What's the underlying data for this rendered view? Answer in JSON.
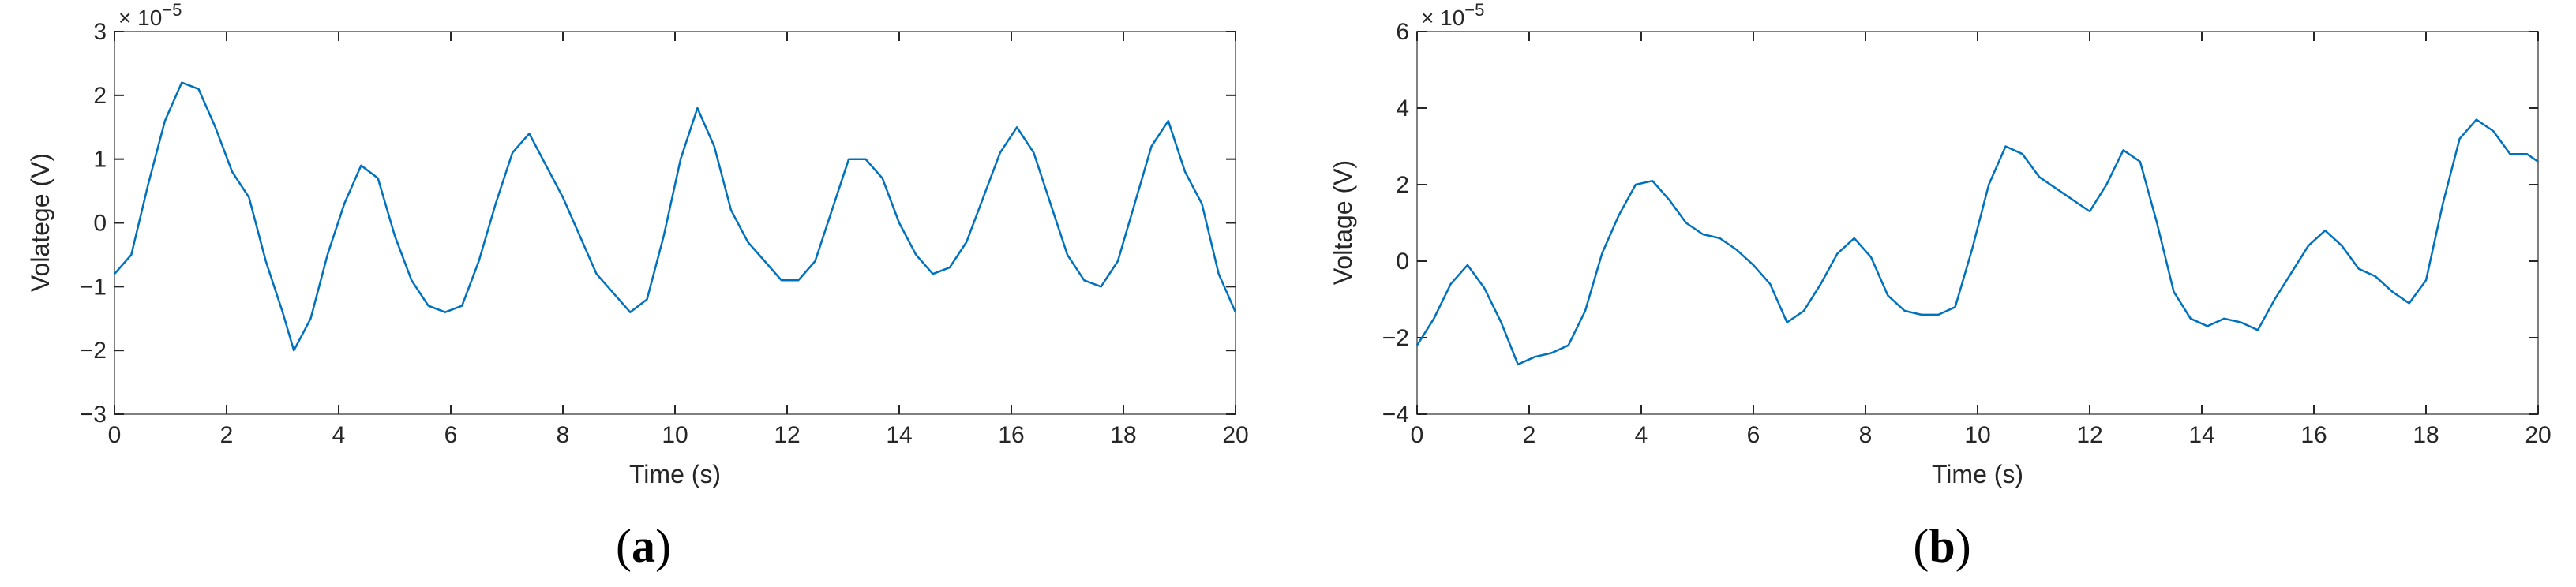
{
  "colors": {
    "series": "#0072BD",
    "axis": "#262626",
    "box": "#808080"
  },
  "chart_data": [
    {
      "type": "line",
      "panel_label_prefix": "(",
      "panel_label_letter": "a",
      "panel_label_suffix": ")",
      "xlabel": "Time (s)",
      "ylabel": "Volatege (V)",
      "exponent_base": "× 10",
      "exponent_power": "−5",
      "xlim": [
        0,
        20
      ],
      "ylim": [
        -3,
        3
      ],
      "xticks": [
        0,
        2,
        4,
        6,
        8,
        10,
        12,
        14,
        16,
        18,
        20
      ],
      "yticks": [
        -3,
        -2,
        -1,
        0,
        1,
        2,
        3
      ],
      "series": [
        {
          "x": [
            0,
            0.3,
            0.6,
            0.9,
            1.2,
            1.5,
            1.8,
            2.1,
            2.4,
            2.7,
            3.0,
            3.2,
            3.5,
            3.8,
            4.1,
            4.4,
            4.7,
            5.0,
            5.3,
            5.6,
            5.9,
            6.2,
            6.5,
            6.8,
            7.1,
            7.4,
            7.7,
            8.0,
            8.3,
            8.6,
            8.9,
            9.2,
            9.5,
            9.8,
            10.1,
            10.4,
            10.7,
            11.0,
            11.3,
            11.6,
            11.9,
            12.2,
            12.5,
            12.8,
            13.1,
            13.4,
            13.7,
            14.0,
            14.3,
            14.6,
            14.9,
            15.2,
            15.5,
            15.8,
            16.1,
            16.4,
            16.7,
            17.0,
            17.3,
            17.6,
            17.9,
            18.2,
            18.5,
            18.8,
            19.1,
            19.4,
            19.7,
            20.0
          ],
          "y": [
            -0.8,
            -0.5,
            0.6,
            1.6,
            2.2,
            2.1,
            1.5,
            0.8,
            0.4,
            -0.6,
            -1.4,
            -2.0,
            -1.5,
            -0.5,
            0.3,
            0.9,
            0.7,
            -0.2,
            -0.9,
            -1.3,
            -1.4,
            -1.3,
            -0.6,
            0.3,
            1.1,
            1.4,
            0.9,
            0.4,
            -0.2,
            -0.8,
            -1.1,
            -1.4,
            -1.2,
            -0.2,
            1.0,
            1.8,
            1.2,
            0.2,
            -0.3,
            -0.6,
            -0.9,
            -0.9,
            -0.6,
            0.2,
            1.0,
            1.0,
            0.7,
            0.0,
            -0.5,
            -0.8,
            -0.7,
            -0.3,
            0.4,
            1.1,
            1.5,
            1.1,
            0.3,
            -0.5,
            -0.9,
            -1.0,
            -0.6,
            0.3,
            1.2,
            1.6,
            0.8,
            0.3,
            -0.8,
            -1.4
          ]
        }
      ]
    },
    {
      "type": "line",
      "panel_label_prefix": "(",
      "panel_label_letter": "b",
      "panel_label_suffix": ")",
      "xlabel": "Time (s)",
      "ylabel": "Voltage (V)",
      "exponent_base": "× 10",
      "exponent_power": "−5",
      "xlim": [
        0,
        20
      ],
      "ylim": [
        -4,
        6
      ],
      "xticks": [
        0,
        2,
        4,
        6,
        8,
        10,
        12,
        14,
        16,
        18,
        20
      ],
      "yticks": [
        -4,
        -2,
        0,
        2,
        4,
        6
      ],
      "series": [
        {
          "x": [
            0,
            0.3,
            0.6,
            0.9,
            1.2,
            1.5,
            1.8,
            2.1,
            2.4,
            2.7,
            3.0,
            3.3,
            3.6,
            3.9,
            4.2,
            4.5,
            4.8,
            5.1,
            5.4,
            5.7,
            6.0,
            6.3,
            6.6,
            6.9,
            7.2,
            7.5,
            7.8,
            8.1,
            8.4,
            8.7,
            9.0,
            9.3,
            9.6,
            9.9,
            10.2,
            10.5,
            10.8,
            11.1,
            11.4,
            11.7,
            12.0,
            12.3,
            12.6,
            12.9,
            13.2,
            13.5,
            13.8,
            14.1,
            14.4,
            14.7,
            15.0,
            15.3,
            15.6,
            15.9,
            16.2,
            16.5,
            16.8,
            17.1,
            17.4,
            17.7,
            18.0,
            18.3,
            18.6,
            18.9,
            19.2,
            19.5,
            19.8,
            20.0
          ],
          "y": [
            -2.2,
            -1.5,
            -0.6,
            -0.1,
            -0.7,
            -1.6,
            -2.7,
            -2.5,
            -2.4,
            -2.2,
            -1.3,
            0.2,
            1.2,
            2.0,
            2.1,
            1.6,
            1.0,
            0.7,
            0.6,
            0.3,
            -0.1,
            -0.6,
            -1.6,
            -1.3,
            -0.6,
            0.2,
            0.6,
            0.1,
            -0.9,
            -1.3,
            -1.4,
            -1.4,
            -1.2,
            0.3,
            2.0,
            3.0,
            2.8,
            2.2,
            1.9,
            1.6,
            1.3,
            2.0,
            2.9,
            2.6,
            1.0,
            -0.8,
            -1.5,
            -1.7,
            -1.5,
            -1.6,
            -1.8,
            -1.0,
            -0.3,
            0.4,
            0.8,
            0.4,
            -0.2,
            -0.4,
            -0.8,
            -1.1,
            -0.5,
            1.5,
            3.2,
            3.7,
            3.4,
            2.8,
            2.8,
            2.6
          ]
        }
      ]
    }
  ]
}
